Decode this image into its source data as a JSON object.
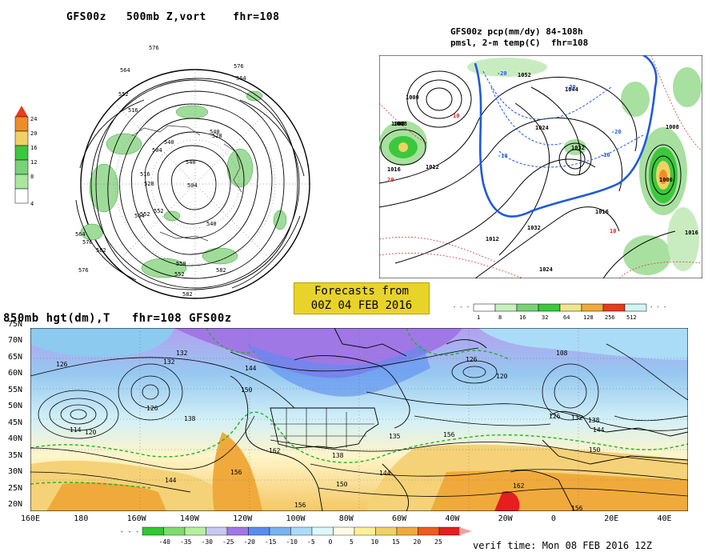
{
  "panel_polar": {
    "title": "GFS00z   500mb Z,vort    fhr=108",
    "contour_labels": [
      "576",
      "576",
      "564",
      "552",
      "564",
      "516",
      "528",
      "540",
      "504",
      "516",
      "528",
      "540",
      "552",
      "564",
      "576",
      "582",
      "564",
      "552",
      "540",
      "582",
      "558",
      "576",
      "582",
      "540",
      "504",
      "552"
    ],
    "legend_values": [
      "24",
      "20",
      "16",
      "12",
      "8",
      "4"
    ]
  },
  "panel_us": {
    "title_line1": "GFS00z pcp(mm/dy) 84-108h",
    "title_line2": "pmsl, 2-m temp(C)  fhr=108",
    "contour_labels": [
      "1000",
      "1008",
      "1012",
      "1024",
      "1032",
      "1016",
      "1008",
      "1000",
      "1012",
      "1016",
      "1024",
      "1032",
      "1052",
      "1044",
      "1016",
      "1008"
    ],
    "temp_labels": [
      "10",
      "-10",
      "-20",
      "-30",
      "-20",
      "-10",
      "10",
      "20"
    ],
    "legend_values": [
      "1",
      "8",
      "16",
      "32",
      "64",
      "128",
      "256",
      "512"
    ]
  },
  "badge": {
    "line1": "Forecasts from",
    "line2": "00Z 04 FEB 2016"
  },
  "panel_main": {
    "title": "850mb hgt(dm),T   fhr=108 GFS00z",
    "lat_labels": [
      "75N",
      "70N",
      "65N",
      "60N",
      "55N",
      "50N",
      "45N",
      "40N",
      "35N",
      "30N",
      "25N",
      "20N"
    ],
    "lon_labels": [
      "160E",
      "180",
      "160W",
      "140W",
      "120W",
      "100W",
      "80W",
      "60W",
      "40W",
      "20W",
      "0",
      "20E",
      "40E"
    ],
    "contour_labels": [
      "126",
      "132",
      "144",
      "126",
      "132",
      "138",
      "150",
      "114",
      "120",
      "144",
      "156",
      "162",
      "138",
      "144",
      "126",
      "120",
      "108",
      "126",
      "132",
      "138",
      "144",
      "150",
      "156",
      "150",
      "156",
      "162",
      "156",
      "135"
    ],
    "colorbar_values": [
      "-40",
      "-35",
      "-30",
      "-25",
      "-20",
      "-15",
      "-10",
      "-5",
      "0",
      "5",
      "10",
      "15",
      "20",
      "25"
    ],
    "colorbar_colors": [
      "#31c831",
      "#7ddc6e",
      "#b4f0a0",
      "#c8c8f0",
      "#a078e6",
      "#5a8cf0",
      "#78b4f0",
      "#aadcf8",
      "#dcf8f8",
      "#fffae6",
      "#fff096",
      "#f0d264",
      "#f0aa3c",
      "#f05a1e",
      "#e61e1e"
    ],
    "verif_time": "verif time: Mon 08 FEB 2016 12Z"
  }
}
